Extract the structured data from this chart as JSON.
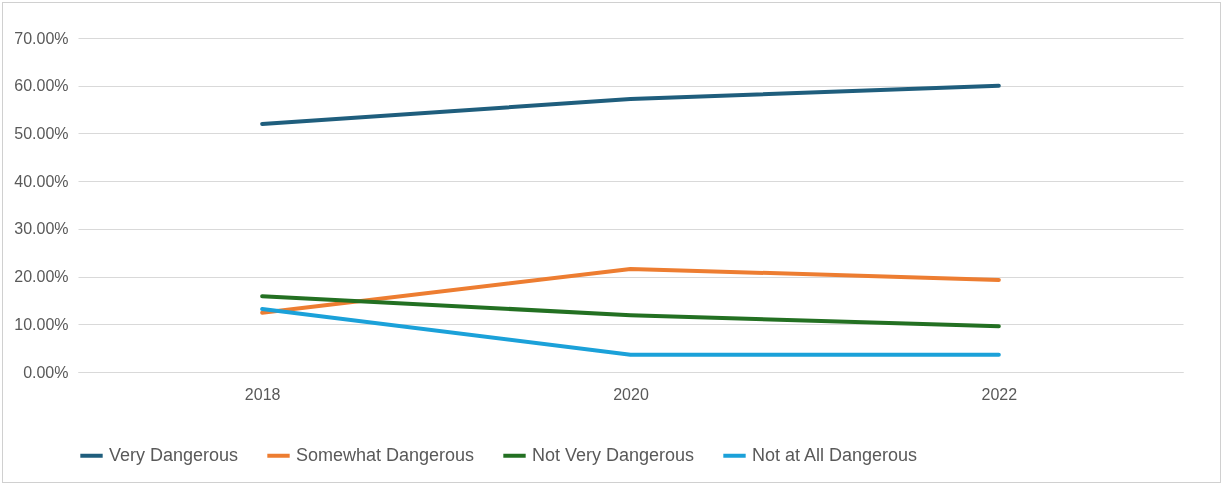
{
  "chart_data": {
    "type": "line",
    "categories": [
      "2018",
      "2020",
      "2022"
    ],
    "series": [
      {
        "name": "Very Dangerous",
        "color": "#1f5e7d",
        "values": [
          52.0,
          57.2,
          60.0
        ]
      },
      {
        "name": "Somewhat Dangerous",
        "color": "#ed7d31",
        "values": [
          12.4,
          21.6,
          19.3
        ]
      },
      {
        "name": "Not Very Dangerous",
        "color": "#237022",
        "values": [
          15.9,
          11.9,
          9.6
        ]
      },
      {
        "name": "Not at All Dangerous",
        "color": "#1ba1d9",
        "values": [
          13.2,
          3.6,
          3.6
        ]
      }
    ],
    "ylim": [
      0,
      70
    ],
    "yticks": [
      {
        "value": 0,
        "label": "0.00%"
      },
      {
        "value": 10,
        "label": "10.00%"
      },
      {
        "value": 20,
        "label": "20.00%"
      },
      {
        "value": 30,
        "label": "30.00%"
      },
      {
        "value": 40,
        "label": "40.00%"
      },
      {
        "value": 50,
        "label": "50.00%"
      },
      {
        "value": 60,
        "label": "60.00%"
      },
      {
        "value": 70,
        "label": "70.00%"
      }
    ],
    "grid": "y",
    "legend": "bottom",
    "marker": "none",
    "line_style": "solid"
  }
}
